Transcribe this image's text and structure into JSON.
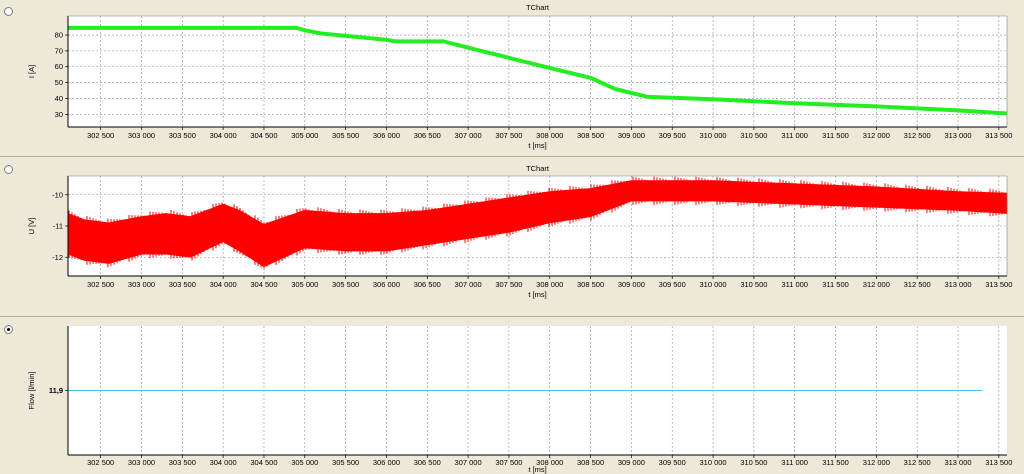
{
  "chart_data": [
    {
      "type": "line",
      "title": "TChart",
      "xlabel": "t [ms]",
      "ylabel": "I [A]",
      "selected": false,
      "xlim": [
        302100,
        313600
      ],
      "ylim": [
        22,
        92
      ],
      "x_ticks": [
        "302 500",
        "303 000",
        "303 500",
        "304 000",
        "304 500",
        "305 000",
        "305 500",
        "306 000",
        "306 500",
        "307 000",
        "307 500",
        "308 000",
        "308 500",
        "309 000",
        "309 500",
        "310 000",
        "310 500",
        "311 000",
        "311 500",
        "312 000",
        "312 500",
        "313 000",
        "313 500"
      ],
      "y_ticks": [
        "30",
        "40",
        "50",
        "60",
        "70",
        "80"
      ],
      "grid": true,
      "series": [
        {
          "color": "#22ee22",
          "x": [
            302100,
            304900,
            305000,
            305200,
            305600,
            306000,
            306100,
            306700,
            307000,
            307400,
            307700,
            308100,
            308500,
            308800,
            309200,
            310000,
            311000,
            312000,
            313000,
            313600
          ],
          "y": [
            84.5,
            84.5,
            83,
            81,
            79,
            77,
            76,
            76,
            72,
            67,
            63,
            58,
            53,
            46,
            41,
            39.5,
            37,
            35,
            32.5,
            30.5
          ],
          "band": 2.5
        }
      ]
    },
    {
      "type": "line",
      "title": "TChart",
      "xlabel": "t [ms]",
      "ylabel": "U [V]",
      "selected": false,
      "xlim": [
        302100,
        313600
      ],
      "ylim": [
        -12.6,
        -9.4
      ],
      "x_ticks": [
        "302 500",
        "303 000",
        "303 500",
        "304 000",
        "304 500",
        "305 000",
        "305 500",
        "306 000",
        "306 500",
        "307 000",
        "307 500",
        "308 000",
        "308 500",
        "309 000",
        "309 500",
        "310 000",
        "310 500",
        "311 000",
        "311 500",
        "312 000",
        "312 500",
        "313 000",
        "313 500"
      ],
      "y_ticks": [
        "-10",
        "-11",
        "-12"
      ],
      "grid": true,
      "series": [
        {
          "color": "#ff0000",
          "x": [
            302100,
            302300,
            302600,
            303000,
            303300,
            303600,
            304000,
            304200,
            304500,
            305000,
            305500,
            306000,
            306500,
            307000,
            307500,
            308000,
            308500,
            309000,
            309500,
            310000,
            311000,
            312000,
            313000,
            313600
          ],
          "y": [
            -11.2,
            -11.4,
            -11.5,
            -11.3,
            -11.2,
            -11.3,
            -10.8,
            -11.0,
            -11.5,
            -11.0,
            -11.1,
            -11.1,
            -11.0,
            -10.8,
            -10.6,
            -10.3,
            -10.3,
            -9.85,
            -9.85,
            -9.85,
            -9.95,
            -10.05,
            -10.2,
            -10.25
          ],
          "top": [
            -10.6,
            -10.8,
            -10.9,
            -10.7,
            -10.6,
            -10.7,
            -10.3,
            -10.5,
            -10.95,
            -10.5,
            -10.6,
            -10.6,
            -10.5,
            -10.3,
            -10.1,
            -9.9,
            -9.8,
            -9.55,
            -9.55,
            -9.55,
            -9.65,
            -9.75,
            -9.9,
            -9.95
          ],
          "bottom": [
            -11.9,
            -12.1,
            -12.2,
            -11.9,
            -11.9,
            -12.0,
            -11.5,
            -11.8,
            -12.3,
            -11.7,
            -11.8,
            -11.8,
            -11.6,
            -11.4,
            -11.2,
            -10.9,
            -10.7,
            -10.2,
            -10.2,
            -10.2,
            -10.3,
            -10.4,
            -10.5,
            -10.6
          ]
        }
      ]
    },
    {
      "type": "line",
      "title": "",
      "xlabel": "t [ms]",
      "ylabel": "Flow [l/min]",
      "selected": true,
      "xlim": [
        302100,
        313600
      ],
      "ylim": [
        11.8,
        12.0
      ],
      "x_ticks": [
        "302 500",
        "303 000",
        "303 500",
        "304 000",
        "304 500",
        "305 000",
        "305 500",
        "306 000",
        "306 500",
        "307 000",
        "307 500",
        "308 000",
        "308 500",
        "309 000",
        "309 500",
        "310 000",
        "310 500",
        "311 000",
        "311 500",
        "312 000",
        "312 500",
        "313 000",
        "313 500"
      ],
      "y_ticks": [
        "11,9"
      ],
      "grid": true,
      "series": [
        {
          "color": "#44c8e0",
          "x": [
            302100,
            313300
          ],
          "y": [
            11.9,
            11.9
          ]
        }
      ]
    }
  ]
}
